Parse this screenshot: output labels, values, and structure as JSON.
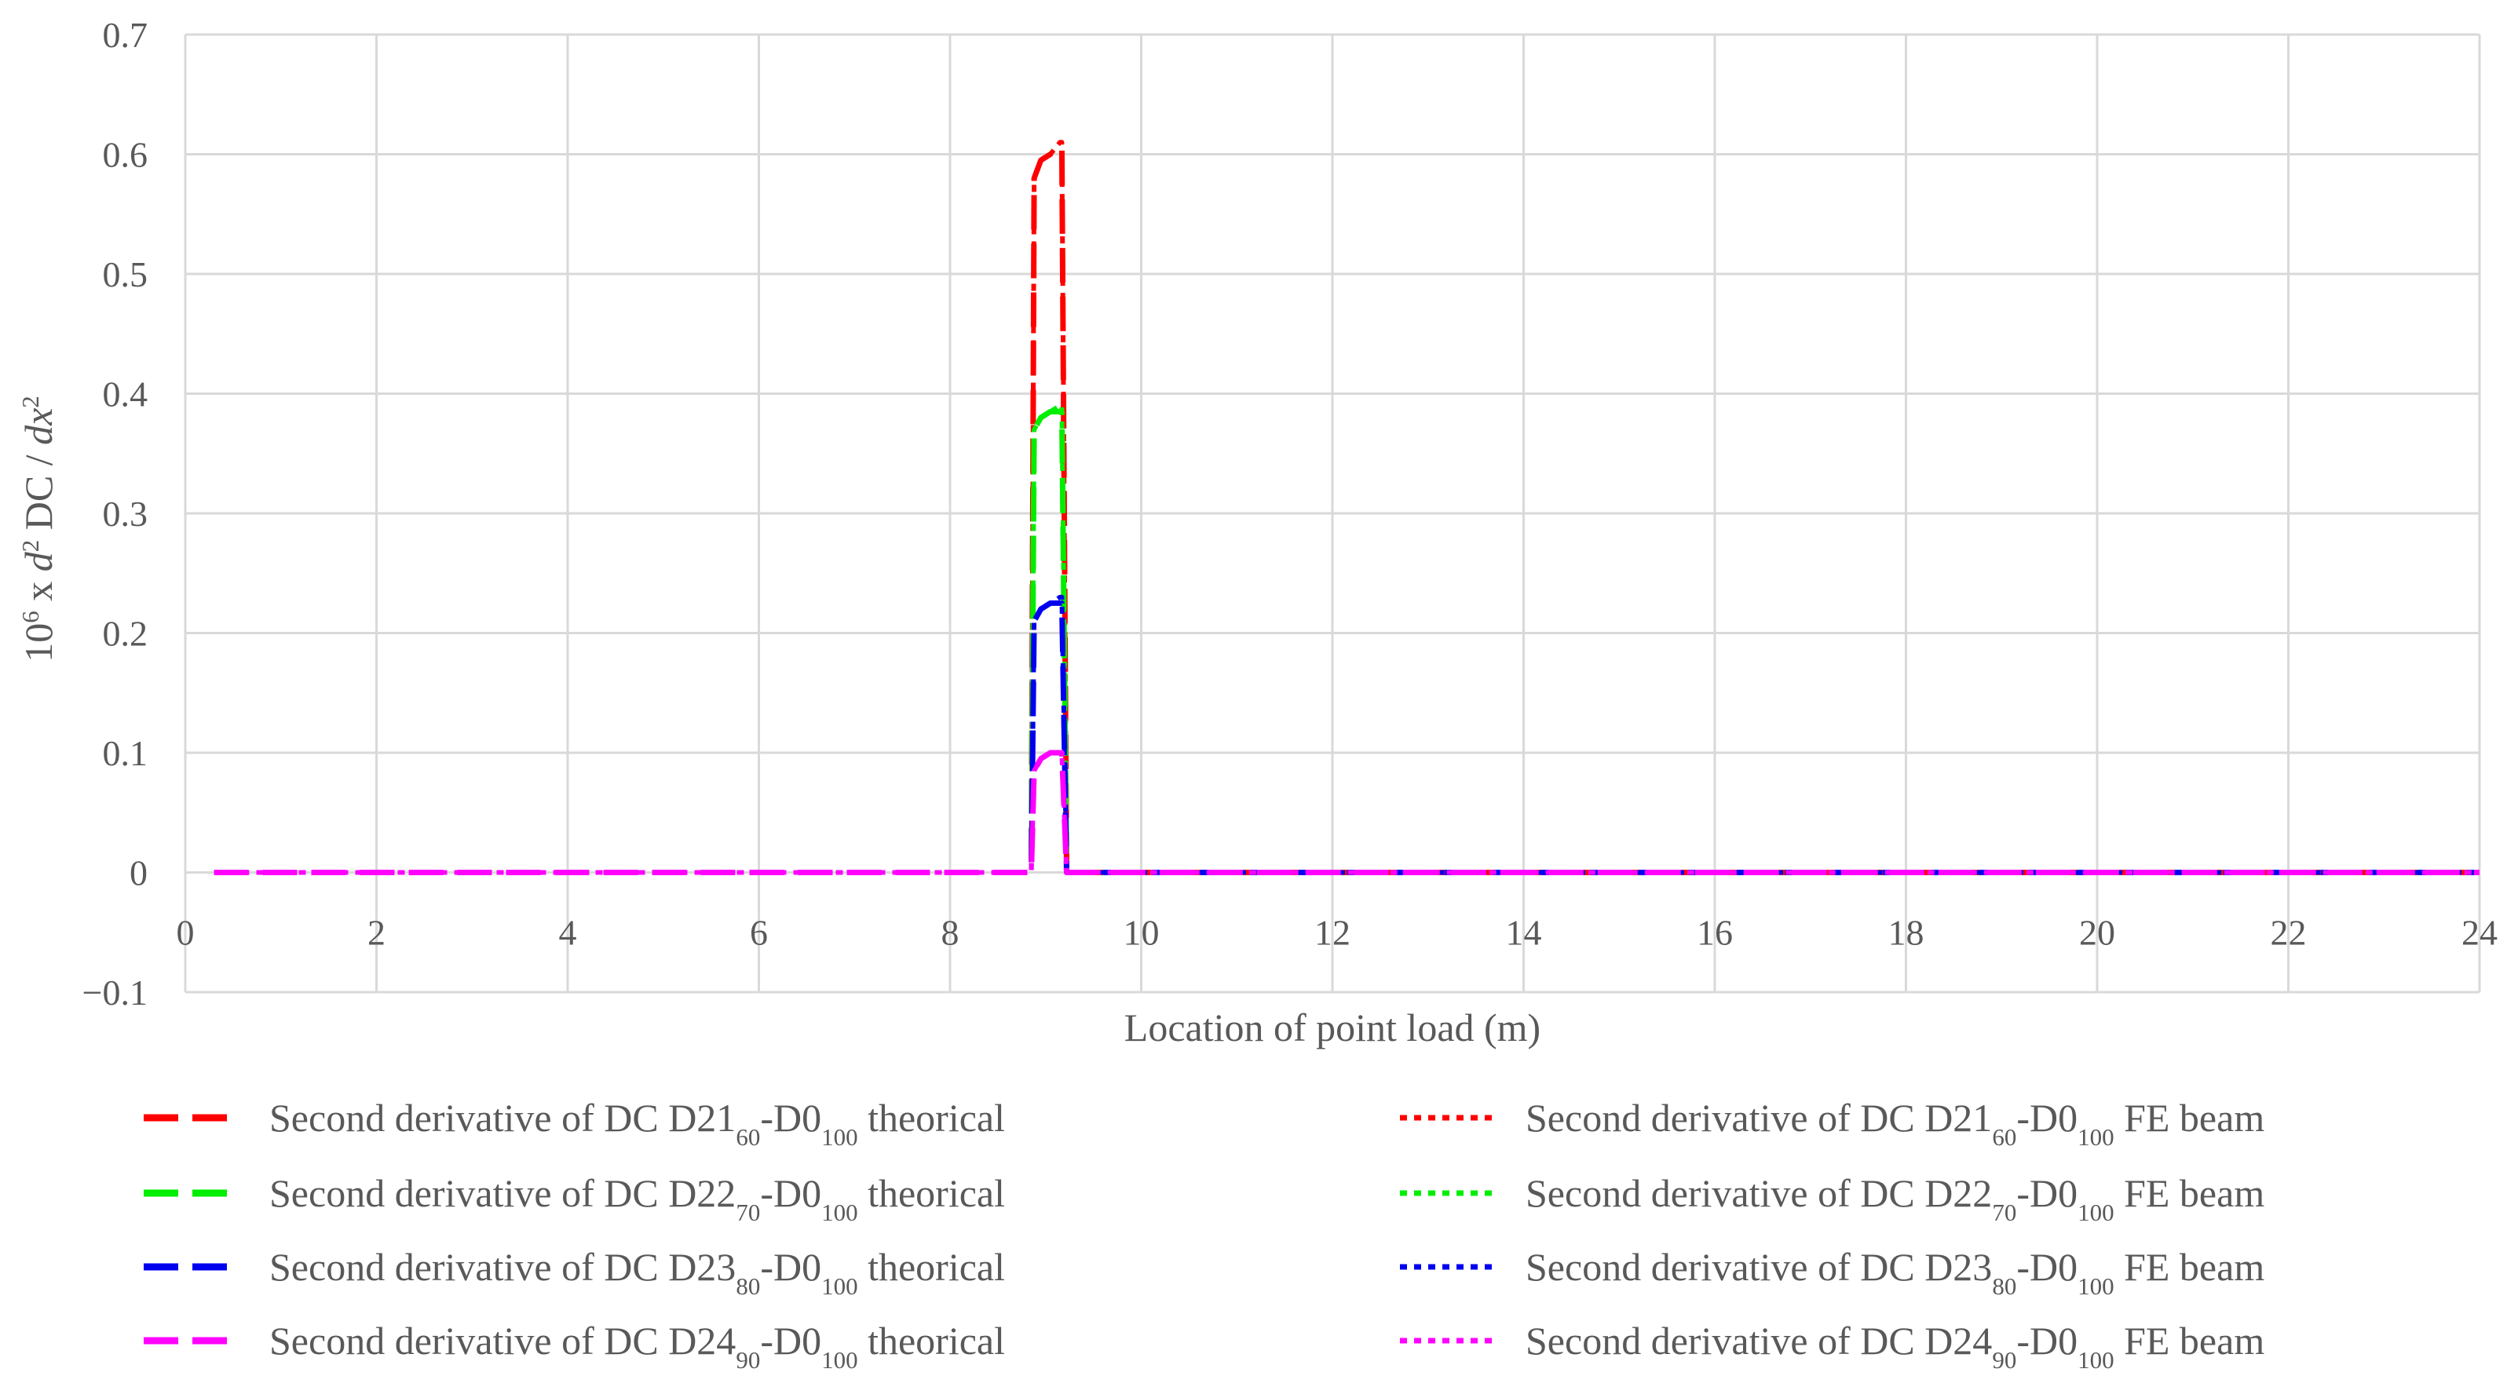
{
  "chart_data": {
    "type": "line",
    "title": "",
    "xlabel": "Location of point load (m)",
    "ylabel": {
      "parts": [
        {
          "text": "10",
          "style": "normal"
        },
        {
          "text": "6",
          "style": "sup"
        },
        {
          "text": " x ",
          "style": "normal"
        },
        {
          "text": "d",
          "style": "italic"
        },
        {
          "text": "2",
          "style": "sup"
        },
        {
          "text": " DC / ",
          "style": "normal"
        },
        {
          "text": "dx",
          "style": "italic"
        },
        {
          "text": "2",
          "style": "sup"
        }
      ]
    },
    "xlim": [
      0,
      24
    ],
    "ylim": [
      -0.1,
      0.7
    ],
    "xticks": [
      "0",
      "2",
      "4",
      "6",
      "8",
      "10",
      "12",
      "14",
      "16",
      "18",
      "20",
      "22",
      "24"
    ],
    "yticks": [
      "0.7",
      "0.6",
      "0.5",
      "0.4",
      "0.3",
      "0.2",
      "0.1",
      "0",
      "−0.1"
    ],
    "grid": true,
    "legend_position": "bottom",
    "series": [
      {
        "name": {
          "parts": [
            {
              "text": "Second derivative of DC D21",
              "style": "normal"
            },
            {
              "text": "60",
              "style": "sub"
            },
            {
              "text": "-D0",
              "style": "normal"
            },
            {
              "text": "100",
              "style": "sub"
            },
            {
              "text": " theorical",
              "style": "normal"
            }
          ]
        },
        "color": "#ff0000",
        "line_style": "dash",
        "x": [
          0.3,
          8.85,
          8.88,
          8.95,
          9.05,
          9.15,
          9.17,
          9.22,
          24.0
        ],
        "y": [
          0,
          0,
          0.58,
          0.595,
          0.6,
          0.605,
          0.605,
          0,
          0
        ]
      },
      {
        "name": {
          "parts": [
            {
              "text": "Second derivative of DC D21",
              "style": "normal"
            },
            {
              "text": "60",
              "style": "sub"
            },
            {
              "text": "-D0",
              "style": "normal"
            },
            {
              "text": "100",
              "style": "sub"
            },
            {
              "text": " FE beam",
              "style": "normal"
            }
          ]
        },
        "color": "#ff0000",
        "line_style": "dot",
        "x": [
          0.3,
          8.85,
          8.88,
          8.95,
          9.05,
          9.15,
          9.17,
          9.22,
          24.0
        ],
        "y": [
          0,
          0,
          0.58,
          0.595,
          0.6,
          0.61,
          0.61,
          0,
          0
        ]
      },
      {
        "name": {
          "parts": [
            {
              "text": "Second derivative of DC D22",
              "style": "normal"
            },
            {
              "text": "70",
              "style": "sub"
            },
            {
              "text": "-D0",
              "style": "normal"
            },
            {
              "text": "100",
              "style": "sub"
            },
            {
              "text": " theorical",
              "style": "normal"
            }
          ]
        },
        "color": "#00ee00",
        "line_style": "dash",
        "x": [
          0.3,
          8.85,
          8.88,
          8.95,
          9.05,
          9.15,
          9.17,
          9.22,
          24.0
        ],
        "y": [
          0,
          0,
          0.37,
          0.38,
          0.385,
          0.385,
          0.385,
          0,
          0
        ]
      },
      {
        "name": {
          "parts": [
            {
              "text": "Second derivative of DC D22",
              "style": "normal"
            },
            {
              "text": "70",
              "style": "sub"
            },
            {
              "text": "-D0",
              "style": "normal"
            },
            {
              "text": "100",
              "style": "sub"
            },
            {
              "text": " FE beam",
              "style": "normal"
            }
          ]
        },
        "color": "#00ee00",
        "line_style": "dot",
        "x": [
          0.3,
          8.85,
          8.88,
          8.95,
          9.05,
          9.15,
          9.17,
          9.22,
          24.0
        ],
        "y": [
          0,
          0,
          0.37,
          0.38,
          0.385,
          0.39,
          0.39,
          0,
          0
        ]
      },
      {
        "name": {
          "parts": [
            {
              "text": "Second derivative of DC D23",
              "style": "normal"
            },
            {
              "text": "80",
              "style": "sub"
            },
            {
              "text": "-D0",
              "style": "normal"
            },
            {
              "text": "100",
              "style": "sub"
            },
            {
              "text": " theorical",
              "style": "normal"
            }
          ]
        },
        "color": "#0000ee",
        "line_style": "dash",
        "x": [
          0.3,
          8.85,
          8.88,
          8.95,
          9.05,
          9.15,
          9.17,
          9.22,
          24.0
        ],
        "y": [
          0,
          0,
          0.21,
          0.22,
          0.225,
          0.225,
          0.225,
          0,
          0
        ]
      },
      {
        "name": {
          "parts": [
            {
              "text": "Second derivative of DC D23",
              "style": "normal"
            },
            {
              "text": "80",
              "style": "sub"
            },
            {
              "text": "-D0",
              "style": "normal"
            },
            {
              "text": "100",
              "style": "sub"
            },
            {
              "text": " FE beam",
              "style": "normal"
            }
          ]
        },
        "color": "#0000ee",
        "line_style": "dot",
        "x": [
          0.3,
          8.85,
          8.88,
          8.95,
          9.05,
          9.15,
          9.17,
          9.22,
          24.0
        ],
        "y": [
          0,
          0,
          0.21,
          0.22,
          0.225,
          0.23,
          0.23,
          0,
          0
        ]
      },
      {
        "name": {
          "parts": [
            {
              "text": "Second derivative of DC D24",
              "style": "normal"
            },
            {
              "text": "90",
              "style": "sub"
            },
            {
              "text": "-D0",
              "style": "normal"
            },
            {
              "text": "100",
              "style": "sub"
            },
            {
              "text": " theorical",
              "style": "normal"
            }
          ]
        },
        "color": "#ff00ff",
        "line_style": "dash",
        "x": [
          0.3,
          8.85,
          8.88,
          8.95,
          9.05,
          9.15,
          9.17,
          9.22,
          24.0
        ],
        "y": [
          0,
          0,
          0.085,
          0.095,
          0.1,
          0.1,
          0.1,
          0,
          0
        ]
      },
      {
        "name": {
          "parts": [
            {
              "text": "Second derivative of DC D24",
              "style": "normal"
            },
            {
              "text": "90",
              "style": "sub"
            },
            {
              "text": "-D0",
              "style": "normal"
            },
            {
              "text": "100",
              "style": "sub"
            },
            {
              "text": " FE beam",
              "style": "normal"
            }
          ]
        },
        "color": "#ff00ff",
        "line_style": "dot",
        "x": [
          0.3,
          8.85,
          8.88,
          8.95,
          9.05,
          9.15,
          9.17,
          9.22,
          24.0
        ],
        "y": [
          0,
          0,
          0.085,
          0.095,
          0.1,
          0.1,
          0.1,
          0,
          0
        ]
      }
    ]
  }
}
